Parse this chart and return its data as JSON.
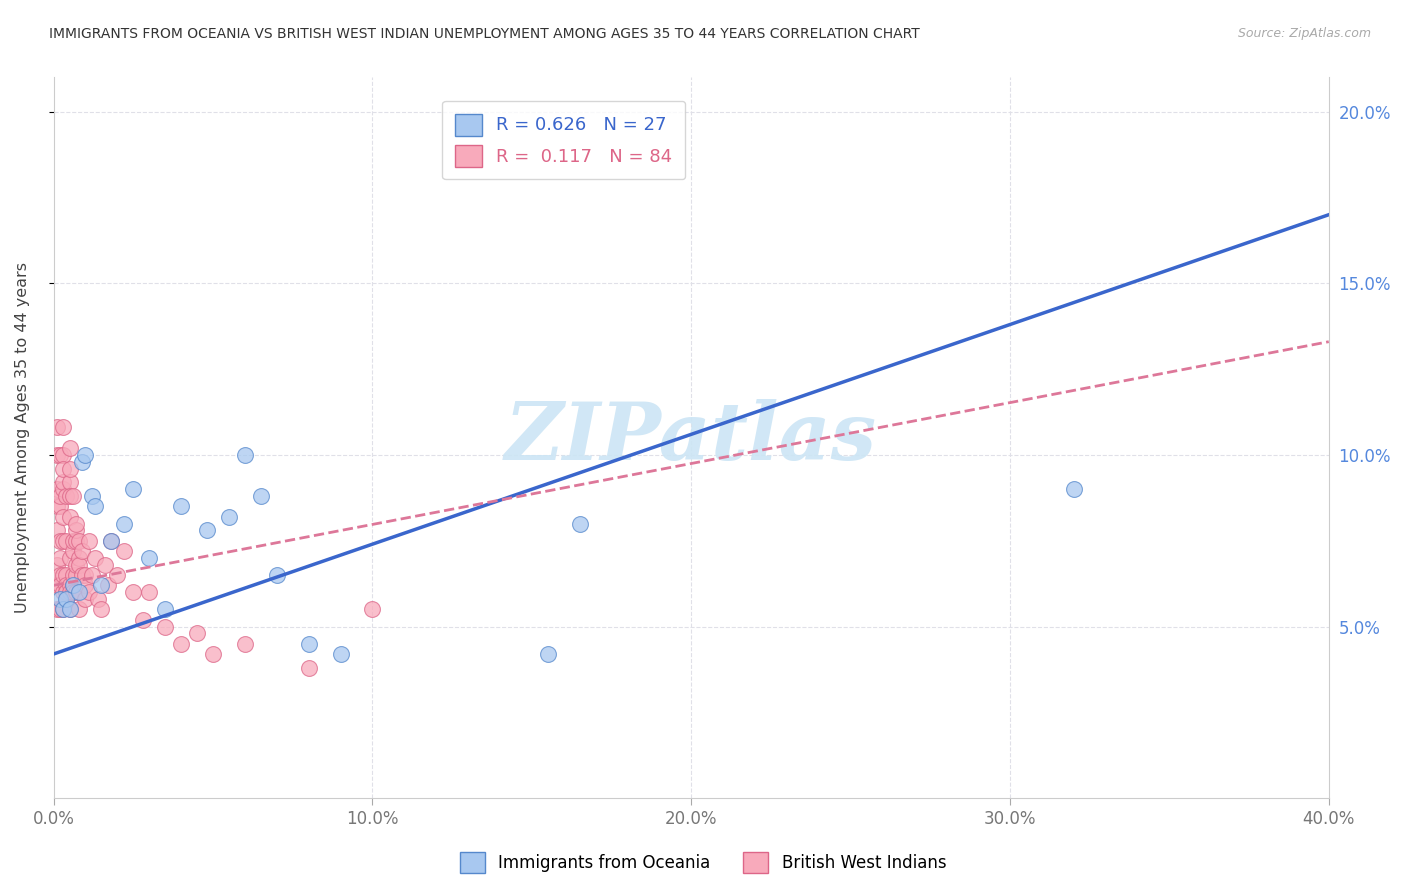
{
  "title": "IMMIGRANTS FROM OCEANIA VS BRITISH WEST INDIAN UNEMPLOYMENT AMONG AGES 35 TO 44 YEARS CORRELATION CHART",
  "source": "Source: ZipAtlas.com",
  "ylabel": "Unemployment Among Ages 35 to 44 years",
  "xlim": [
    0.0,
    0.4
  ],
  "ylim": [
    0.0,
    0.21
  ],
  "yticks": [
    0.05,
    0.1,
    0.15,
    0.2
  ],
  "ytick_labels": [
    "5.0%",
    "10.0%",
    "15.0%",
    "20.0%"
  ],
  "xticks": [
    0.0,
    0.1,
    0.2,
    0.3,
    0.4
  ],
  "xtick_labels": [
    "0.0%",
    "10.0%",
    "20.0%",
    "30.0%",
    "40.0%"
  ],
  "oceania_R": "0.626",
  "oceania_N": "27",
  "bwi_R": "0.117",
  "bwi_N": "84",
  "oceania_scatter_color": "#a8c8f0",
  "oceania_edge_color": "#5588cc",
  "bwi_scatter_color": "#f8aabb",
  "bwi_edge_color": "#dd6688",
  "oceania_line_color": "#3a66cc",
  "bwi_line_color": "#dd7799",
  "watermark": "ZIPatlas",
  "watermark_color": "#cce5f5",
  "grid_color": "#e0e0e8",
  "oceania_label": "Immigrants from Oceania",
  "bwi_label": "British West Indians",
  "oceania_line_x0": 0.0,
  "oceania_line_y0": 0.042,
  "oceania_line_x1": 0.4,
  "oceania_line_y1": 0.17,
  "bwi_line_x0": 0.0,
  "bwi_line_y0": 0.062,
  "bwi_line_x1": 0.4,
  "bwi_line_y1": 0.133,
  "oceania_x": [
    0.002,
    0.003,
    0.004,
    0.005,
    0.006,
    0.008,
    0.009,
    0.01,
    0.012,
    0.013,
    0.015,
    0.018,
    0.022,
    0.025,
    0.03,
    0.035,
    0.04,
    0.048,
    0.055,
    0.06,
    0.065,
    0.07,
    0.08,
    0.09,
    0.155,
    0.165,
    0.32
  ],
  "oceania_y": [
    0.058,
    0.055,
    0.058,
    0.055,
    0.062,
    0.06,
    0.098,
    0.1,
    0.088,
    0.085,
    0.062,
    0.075,
    0.08,
    0.09,
    0.07,
    0.055,
    0.085,
    0.078,
    0.082,
    0.1,
    0.088,
    0.065,
    0.045,
    0.042,
    0.042,
    0.08,
    0.09
  ],
  "bwi_x": [
    0.001,
    0.001,
    0.001,
    0.001,
    0.001,
    0.001,
    0.001,
    0.001,
    0.002,
    0.002,
    0.002,
    0.002,
    0.002,
    0.002,
    0.002,
    0.002,
    0.003,
    0.003,
    0.003,
    0.003,
    0.003,
    0.003,
    0.003,
    0.003,
    0.003,
    0.003,
    0.004,
    0.004,
    0.004,
    0.004,
    0.004,
    0.004,
    0.004,
    0.005,
    0.005,
    0.005,
    0.005,
    0.005,
    0.005,
    0.005,
    0.005,
    0.005,
    0.006,
    0.006,
    0.006,
    0.006,
    0.006,
    0.006,
    0.007,
    0.007,
    0.007,
    0.007,
    0.007,
    0.007,
    0.008,
    0.008,
    0.008,
    0.008,
    0.009,
    0.009,
    0.01,
    0.01,
    0.01,
    0.011,
    0.011,
    0.012,
    0.013,
    0.014,
    0.015,
    0.016,
    0.017,
    0.018,
    0.02,
    0.022,
    0.025,
    0.028,
    0.03,
    0.035,
    0.04,
    0.045,
    0.05,
    0.06,
    0.08,
    0.1
  ],
  "bwi_y": [
    0.055,
    0.062,
    0.068,
    0.078,
    0.085,
    0.09,
    0.1,
    0.108,
    0.065,
    0.075,
    0.085,
    0.1,
    0.07,
    0.062,
    0.055,
    0.088,
    0.09,
    0.1,
    0.108,
    0.075,
    0.065,
    0.055,
    0.082,
    0.092,
    0.096,
    0.06,
    0.065,
    0.062,
    0.06,
    0.058,
    0.075,
    0.088,
    0.06,
    0.082,
    0.092,
    0.096,
    0.102,
    0.07,
    0.062,
    0.055,
    0.088,
    0.06,
    0.062,
    0.065,
    0.072,
    0.088,
    0.06,
    0.075,
    0.075,
    0.065,
    0.068,
    0.078,
    0.08,
    0.06,
    0.07,
    0.075,
    0.055,
    0.068,
    0.065,
    0.072,
    0.058,
    0.065,
    0.062,
    0.06,
    0.075,
    0.065,
    0.07,
    0.058,
    0.055,
    0.068,
    0.062,
    0.075,
    0.065,
    0.072,
    0.06,
    0.052,
    0.06,
    0.05,
    0.045,
    0.048,
    0.042,
    0.045,
    0.038,
    0.055
  ]
}
